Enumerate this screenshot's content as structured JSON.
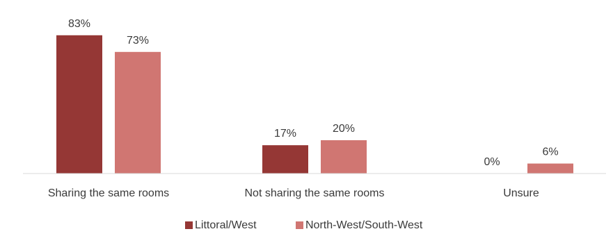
{
  "chart_data": {
    "type": "bar",
    "categories": [
      "Sharing the same rooms",
      "Not sharing the same rooms",
      "Unsure"
    ],
    "series": [
      {
        "name": "Littoral/West",
        "values": [
          83,
          17,
          0
        ],
        "labels": [
          "83%",
          "17%",
          "0%"
        ],
        "color": "#953735"
      },
      {
        "name": "North-West/South-West",
        "values": [
          73,
          20,
          6
        ],
        "labels": [
          "73%",
          "20%",
          "6%"
        ],
        "color": "#D07672"
      }
    ],
    "title": "",
    "xlabel": "",
    "ylabel": "",
    "ylim": [
      0,
      90
    ],
    "grid": false,
    "legend_position": "bottom-center",
    "axis_color": "#d9d9d9"
  }
}
